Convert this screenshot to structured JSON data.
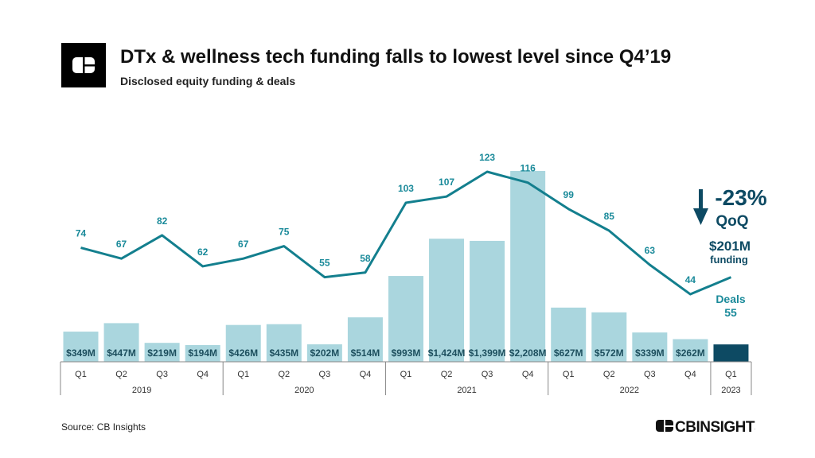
{
  "title": "DTx & wellness tech funding falls to lowest level since Q4’19",
  "subtitle": "Disclosed equity funding & deals",
  "source": "Source: CB Insights",
  "brand": "CBINSIGHTS",
  "colors": {
    "bar": "#aad6de",
    "bar_highlight": "#0d4a63",
    "line": "#137f8e",
    "label": "#1a8a9a",
    "callout": "#0d4a63"
  },
  "callout": {
    "icon": "arrow-down-icon",
    "change": "-23%",
    "period": "QoQ",
    "funding": "$201M",
    "funding_label": "funding",
    "deals_label": "Deals",
    "deals": "55"
  },
  "chart_data": {
    "type": "bar+line",
    "quarters": [
      "Q1",
      "Q2",
      "Q3",
      "Q4",
      "Q1",
      "Q2",
      "Q3",
      "Q4",
      "Q1",
      "Q2",
      "Q3",
      "Q4",
      "Q1",
      "Q2",
      "Q3",
      "Q4",
      "Q1"
    ],
    "years": [
      {
        "label": "2019",
        "span": 4
      },
      {
        "label": "2020",
        "span": 4
      },
      {
        "label": "2021",
        "span": 4
      },
      {
        "label": "2022",
        "span": 4
      },
      {
        "label": "2023",
        "span": 1
      }
    ],
    "funding_usd_m": [
      349,
      447,
      219,
      194,
      426,
      435,
      202,
      514,
      993,
      1424,
      1399,
      2208,
      627,
      572,
      339,
      262,
      201
    ],
    "funding_labels": [
      "$349M",
      "$447M",
      "$219M",
      "$194M",
      "$426M",
      "$435M",
      "$202M",
      "$514M",
      "$993M",
      "$1,424M",
      "$1,399M",
      "$2,208M",
      "$627M",
      "$572M",
      "$339M",
      "$262M",
      ""
    ],
    "deals": [
      74,
      67,
      82,
      62,
      67,
      75,
      55,
      58,
      103,
      107,
      123,
      116,
      99,
      85,
      63,
      44,
      55
    ],
    "deal_labels": [
      "74",
      "67",
      "82",
      "62",
      "67",
      "75",
      "55",
      "58",
      "103",
      "107",
      "123",
      "116",
      "99",
      "85",
      "63",
      "44",
      ""
    ]
  }
}
